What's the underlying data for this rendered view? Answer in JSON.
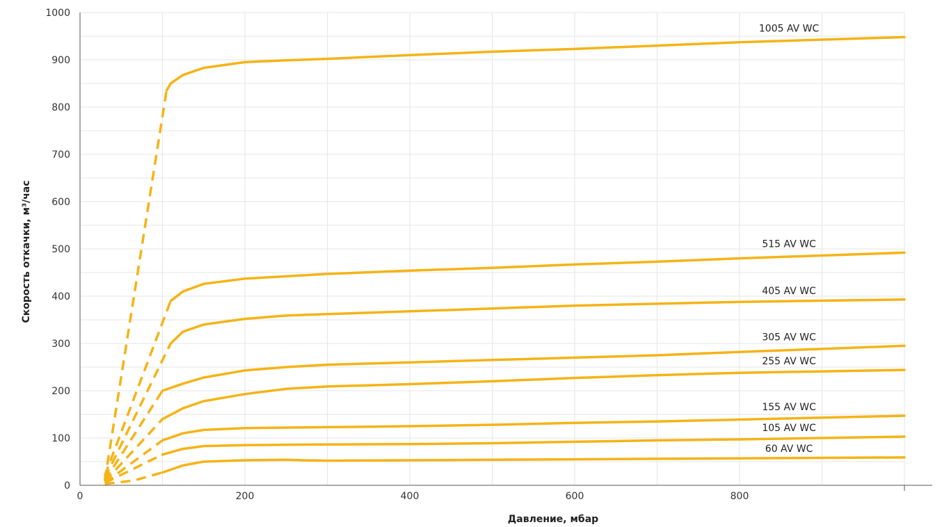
{
  "chart_data": {
    "type": "line",
    "xlabel": "Давление, мбар",
    "ylabel": "Скорость откачки, м³/час",
    "xlim": [
      0,
      1000
    ],
    "ylim": [
      0,
      1000
    ],
    "x_ticks": [
      "0",
      "200",
      "400",
      "600",
      "800"
    ],
    "y_ticks": [
      "0",
      "100",
      "200",
      "300",
      "400",
      "500",
      "600",
      "700",
      "800",
      "900",
      "1000"
    ],
    "grid": true,
    "line_color": "#F5B316",
    "series": [
      {
        "name": "1005 AV WC",
        "dashed": [
          [
            30,
            10
          ],
          [
            105,
            835
          ]
        ],
        "solid": [
          [
            105,
            835
          ],
          [
            110,
            850
          ],
          [
            125,
            868
          ],
          [
            150,
            883
          ],
          [
            200,
            895
          ],
          [
            250,
            899
          ],
          [
            300,
            902
          ],
          [
            400,
            910
          ],
          [
            500,
            917
          ],
          [
            600,
            923
          ],
          [
            700,
            930
          ],
          [
            800,
            937
          ],
          [
            1000,
            948
          ]
        ]
      },
      {
        "name": "515 AV WC",
        "dashed": [
          [
            30,
            20
          ],
          [
            110,
            390
          ]
        ],
        "solid": [
          [
            110,
            390
          ],
          [
            125,
            410
          ],
          [
            150,
            426
          ],
          [
            200,
            437
          ],
          [
            300,
            447
          ],
          [
            400,
            454
          ],
          [
            500,
            460
          ],
          [
            600,
            467
          ],
          [
            700,
            473
          ],
          [
            800,
            480
          ],
          [
            1000,
            492
          ]
        ]
      },
      {
        "name": "405 AV WC",
        "dashed": [
          [
            30,
            15
          ],
          [
            110,
            300
          ]
        ],
        "solid": [
          [
            110,
            300
          ],
          [
            125,
            325
          ],
          [
            150,
            340
          ],
          [
            200,
            352
          ],
          [
            250,
            359
          ],
          [
            300,
            362
          ],
          [
            400,
            368
          ],
          [
            500,
            374
          ],
          [
            600,
            380
          ],
          [
            700,
            384
          ],
          [
            800,
            388
          ],
          [
            1000,
            393
          ]
        ]
      },
      {
        "name": "305 AV WC",
        "dashed": [
          [
            30,
            10
          ],
          [
            100,
            200
          ]
        ],
        "solid": [
          [
            100,
            200
          ],
          [
            125,
            215
          ],
          [
            150,
            228
          ],
          [
            200,
            243
          ],
          [
            250,
            250
          ],
          [
            300,
            255
          ],
          [
            400,
            260
          ],
          [
            500,
            265
          ],
          [
            600,
            270
          ],
          [
            700,
            275
          ],
          [
            800,
            282
          ],
          [
            1000,
            295
          ]
        ]
      },
      {
        "name": "255 AV WC",
        "dashed": [
          [
            30,
            8
          ],
          [
            100,
            140
          ]
        ],
        "solid": [
          [
            100,
            140
          ],
          [
            125,
            163
          ],
          [
            150,
            178
          ],
          [
            200,
            193
          ],
          [
            250,
            204
          ],
          [
            300,
            209
          ],
          [
            400,
            214
          ],
          [
            500,
            220
          ],
          [
            600,
            227
          ],
          [
            700,
            233
          ],
          [
            800,
            238
          ],
          [
            1000,
            244
          ]
        ]
      },
      {
        "name": "155 AV WC",
        "dashed": [
          [
            30,
            5
          ],
          [
            100,
            95
          ]
        ],
        "solid": [
          [
            100,
            95
          ],
          [
            125,
            110
          ],
          [
            150,
            117
          ],
          [
            200,
            121
          ],
          [
            300,
            123
          ],
          [
            400,
            125
          ],
          [
            500,
            128
          ],
          [
            600,
            132
          ],
          [
            700,
            135
          ],
          [
            800,
            139
          ],
          [
            1000,
            147
          ]
        ]
      },
      {
        "name": "105 AV WC",
        "dashed": [
          [
            30,
            5
          ],
          [
            100,
            65
          ]
        ],
        "solid": [
          [
            100,
            65
          ],
          [
            125,
            77
          ],
          [
            150,
            83
          ],
          [
            200,
            85
          ],
          [
            270,
            86
          ],
          [
            400,
            87
          ],
          [
            500,
            89
          ],
          [
            600,
            92
          ],
          [
            700,
            95
          ],
          [
            800,
            97
          ],
          [
            1000,
            103
          ]
        ]
      },
      {
        "name": "60 AV WC",
        "dashed": [
          [
            30,
            3
          ],
          [
            65,
            10
          ],
          [
            100,
            27
          ]
        ],
        "solid": [
          [
            100,
            27
          ],
          [
            125,
            42
          ],
          [
            150,
            50
          ],
          [
            200,
            53
          ],
          [
            250,
            54
          ],
          [
            270,
            53
          ],
          [
            300,
            52
          ],
          [
            400,
            53
          ],
          [
            500,
            54
          ],
          [
            600,
            55
          ],
          [
            700,
            56
          ],
          [
            800,
            57
          ],
          [
            1000,
            59
          ]
        ]
      }
    ]
  }
}
